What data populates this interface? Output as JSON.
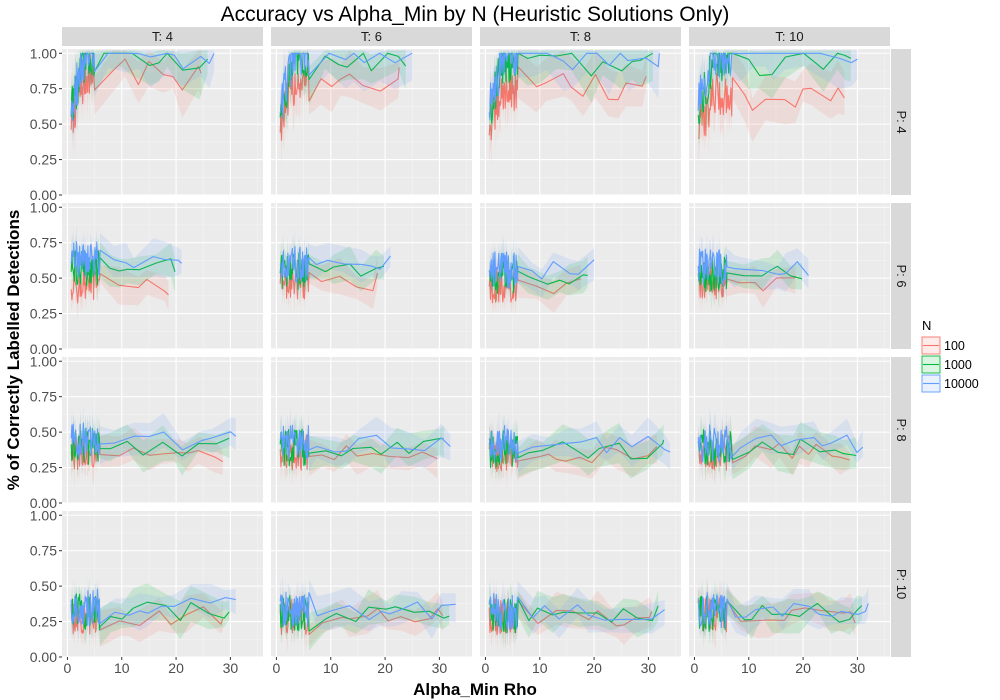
{
  "chart_data": {
    "type": "line",
    "title": "Accuracy vs Alpha_Min by N (Heuristic Solutions Only)",
    "xlabel": "Alpha_Min Rho",
    "ylabel": "% of Correctly Labelled Detections",
    "xlim": [
      -1,
      36
    ],
    "ylim": [
      0,
      1.03
    ],
    "x_ticks": [
      0,
      10,
      20,
      30
    ],
    "y_ticks": [
      0,
      0.25,
      0.5,
      0.75,
      1.0
    ],
    "y_tick_labels": [
      "0.00",
      "0.25",
      "0.50",
      "0.75",
      "1.00"
    ],
    "facet_cols": [
      "T: 4",
      "T: 6",
      "T: 8",
      "T: 10"
    ],
    "facet_rows": [
      "P: 4",
      "P: 6",
      "P: 8",
      "P: 10"
    ],
    "legend": {
      "title": "N",
      "position": "right"
    },
    "series": [
      {
        "name": "100",
        "color": "#F8766D"
      },
      {
        "name": "1000",
        "color": "#00BA38"
      },
      {
        "name": "10000",
        "color": "#619CFF"
      }
    ],
    "panels": [
      {
        "row": "P: 4",
        "col": "T: 4",
        "xmax": 27,
        "dense_end": 5,
        "approx_mean": {
          "100": 0.85,
          "1000": 0.99,
          "10000": 1.0
        }
      },
      {
        "row": "P: 4",
        "col": "T: 6",
        "xmax": 25,
        "dense_end": 6,
        "approx_mean": {
          "100": 0.8,
          "1000": 0.96,
          "10000": 1.0
        }
      },
      {
        "row": "P: 4",
        "col": "T: 8",
        "xmax": 32,
        "dense_end": 6,
        "approx_mean": {
          "100": 0.75,
          "1000": 0.95,
          "10000": 0.99
        }
      },
      {
        "row": "P: 4",
        "col": "T: 10",
        "xmax": 30,
        "dense_end": 7,
        "approx_mean": {
          "100": 0.7,
          "1000": 0.95,
          "10000": 0.99
        }
      },
      {
        "row": "P: 6",
        "col": "T: 4",
        "xmax": 21,
        "dense_end": 6,
        "approx_mean": {
          "100": 0.45,
          "1000": 0.57,
          "10000": 0.63
        }
      },
      {
        "row": "P: 6",
        "col": "T: 6",
        "xmax": 21,
        "dense_end": 6,
        "approx_mean": {
          "100": 0.48,
          "1000": 0.55,
          "10000": 0.6
        }
      },
      {
        "row": "P: 6",
        "col": "T: 8",
        "xmax": 20,
        "dense_end": 6,
        "approx_mean": {
          "100": 0.45,
          "1000": 0.52,
          "10000": 0.56
        }
      },
      {
        "row": "P: 6",
        "col": "T: 10",
        "xmax": 21,
        "dense_end": 6,
        "approx_mean": {
          "100": 0.48,
          "1000": 0.53,
          "10000": 0.58
        }
      },
      {
        "row": "P: 8",
        "col": "T: 4",
        "xmax": 31,
        "dense_end": 6,
        "approx_mean": {
          "100": 0.35,
          "1000": 0.4,
          "10000": 0.44
        }
      },
      {
        "row": "P: 8",
        "col": "T: 6",
        "xmax": 32,
        "dense_end": 6,
        "approx_mean": {
          "100": 0.36,
          "1000": 0.39,
          "10000": 0.42
        }
      },
      {
        "row": "P: 8",
        "col": "T: 8",
        "xmax": 34,
        "dense_end": 6,
        "approx_mean": {
          "100": 0.35,
          "1000": 0.38,
          "10000": 0.42
        }
      },
      {
        "row": "P: 8",
        "col": "T: 10",
        "xmax": 31,
        "dense_end": 7,
        "approx_mean": {
          "100": 0.36,
          "1000": 0.39,
          "10000": 0.42
        }
      },
      {
        "row": "P: 10",
        "col": "T: 4",
        "xmax": 31,
        "dense_end": 6,
        "approx_mean": {
          "100": 0.29,
          "1000": 0.32,
          "10000": 0.35
        }
      },
      {
        "row": "P: 10",
        "col": "T: 6",
        "xmax": 33,
        "dense_end": 6,
        "approx_mean": {
          "100": 0.28,
          "1000": 0.31,
          "10000": 0.33
        }
      },
      {
        "row": "P: 10",
        "col": "T: 8",
        "xmax": 33,
        "dense_end": 6,
        "approx_mean": {
          "100": 0.28,
          "1000": 0.3,
          "10000": 0.32
        }
      },
      {
        "row": "P: 10",
        "col": "T: 10",
        "xmax": 32,
        "dense_end": 6,
        "approx_mean": {
          "100": 0.3,
          "1000": 0.31,
          "10000": 0.33
        }
      }
    ]
  }
}
